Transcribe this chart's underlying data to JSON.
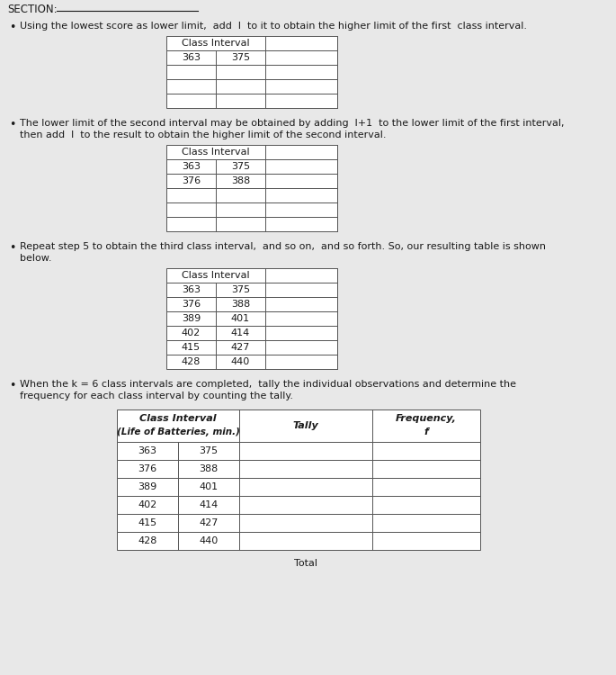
{
  "bg_color": "#e8e8e8",
  "paper_color": "#f0efed",
  "text_color": "#1a1a1a",
  "table_line_color": "#555555",
  "section_label": "SECTION:",
  "bullet1_text": "Using the lowest score as lower limit,  add  l  to it to obtain the higher limit of the first  class interval.",
  "bullet2_text_line1": "The lower limit of the second interval may be obtained by adding  l+1  to the lower limit of the first interval,",
  "bullet2_text_line2": "then add  l  to the result to obtain the higher limit of the second interval.",
  "bullet3_text_line1": "Repeat step 5 to obtain the third class interval,  and so on,  and so forth. So, our resulting table is shown",
  "bullet3_text_line2": "below.",
  "bullet4_text_line1": "When the k = 6 class intervals are completed,  tally the individual observations and determine the",
  "bullet4_text_line2": "frequency for each class interval by counting the tally.",
  "table4_col1_h1": "Class Interval",
  "table4_col1_h2": "(Life of Batteries, min.)",
  "table4_col2_h": "Tally",
  "table4_col3_h1": "Frequency,",
  "table4_col3_h2": "f",
  "total_label": "Total",
  "font_size": 8.0,
  "font_size_small": 7.5
}
